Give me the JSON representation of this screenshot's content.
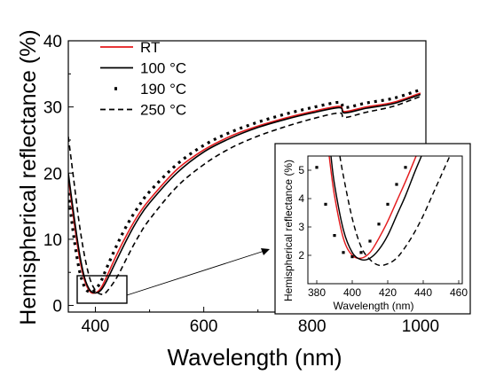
{
  "colors": {
    "rt": "#e41a1c",
    "black": "#000000"
  },
  "chart_data": [
    {
      "type": "line",
      "xlabel": "Wavelength (nm)",
      "ylabel": "Hemispherical reflectance (%)",
      "xlim": [
        350,
        1010
      ],
      "ylim": [
        -1,
        40
      ],
      "xticks": [
        400,
        600,
        800,
        1000
      ],
      "yticks": [
        0,
        10,
        20,
        30,
        40
      ],
      "grid": false,
      "legend_position": "top-left",
      "series": [
        {
          "name": "RT",
          "color": "#e41a1c",
          "style": "solid",
          "x": [
            350,
            360,
            370,
            380,
            390,
            400,
            410,
            420,
            440,
            460,
            480,
            500,
            550,
            600,
            650,
            700,
            750,
            800,
            850,
            860,
            900,
            950,
            1000
          ],
          "y": [
            19.5,
            13,
            7.5,
            3.8,
            2.1,
            1.9,
            2.6,
            4.2,
            7.8,
            11,
            13.8,
            16,
            20.5,
            23.5,
            25.6,
            27.1,
            28.3,
            29.3,
            30.1,
            29.3,
            30.0,
            30.7,
            32.1
          ]
        },
        {
          "name": "100 °C",
          "color": "#000000",
          "style": "solid",
          "x": [
            350,
            360,
            370,
            380,
            390,
            400,
            410,
            420,
            440,
            460,
            480,
            500,
            550,
            600,
            650,
            700,
            750,
            800,
            850,
            860,
            900,
            950,
            1000
          ],
          "y": [
            20,
            13.8,
            8.2,
            4.2,
            2.3,
            1.9,
            2.3,
            3.6,
            7,
            10.3,
            13.2,
            15.5,
            20,
            23.2,
            25.3,
            26.9,
            28.1,
            29.1,
            29.9,
            29.1,
            29.8,
            30.5,
            31.9
          ]
        },
        {
          "name": "190 °C",
          "color": "#000000",
          "style": "dotted",
          "x": [
            350,
            360,
            370,
            380,
            390,
            400,
            410,
            420,
            440,
            460,
            480,
            500,
            550,
            600,
            650,
            700,
            750,
            800,
            850,
            860,
            900,
            950,
            1000
          ],
          "y": [
            17,
            10.5,
            5.5,
            2.8,
            2.0,
            2.4,
            3.6,
            5.5,
            9.2,
            12.4,
            15,
            17.2,
            21.3,
            24.2,
            26.2,
            27.7,
            28.9,
            29.9,
            30.7,
            29.9,
            30.6,
            31.3,
            32.6
          ]
        },
        {
          "name": "250 °C",
          "color": "#000000",
          "style": "dashed",
          "x": [
            350,
            360,
            370,
            380,
            390,
            400,
            410,
            420,
            440,
            460,
            480,
            500,
            550,
            600,
            650,
            700,
            750,
            800,
            850,
            860,
            900,
            950,
            1000
          ],
          "y": [
            25.5,
            19,
            12.5,
            7.5,
            4.0,
            2.3,
            1.7,
            2.0,
            4.3,
            7.5,
            10.5,
            13,
            17.9,
            21.3,
            23.8,
            25.6,
            27.0,
            28.2,
            29.1,
            28.4,
            29.2,
            30.1,
            31.6
          ]
        }
      ]
    },
    {
      "type": "line",
      "xlabel": "Wavelength (nm)",
      "ylabel": "Hemispherical reflectance (%)",
      "xlim": [
        375,
        462
      ],
      "ylim": [
        1,
        5.5
      ],
      "xticks": [
        380,
        400,
        420,
        440,
        460
      ],
      "yticks": [
        2,
        3,
        4,
        5
      ],
      "series": [
        {
          "name": "RT",
          "color": "#e41a1c",
          "style": "solid",
          "x": [
            387,
            390,
            395,
            400,
            405,
            410,
            415,
            420,
            425,
            430,
            436
          ],
          "y": [
            5.5,
            4.1,
            2.6,
            2.0,
            1.9,
            2.1,
            2.6,
            3.2,
            3.9,
            4.6,
            5.5
          ]
        },
        {
          "name": "100 °C",
          "color": "#000000",
          "style": "solid",
          "x": [
            388,
            390,
            395,
            400,
            405,
            410,
            415,
            420,
            425,
            430,
            435,
            439
          ],
          "y": [
            5.5,
            4.5,
            2.9,
            2.1,
            1.85,
            1.9,
            2.2,
            2.7,
            3.4,
            4.1,
            4.9,
            5.5
          ]
        },
        {
          "name": "190 °C",
          "color": "#000000",
          "style": "dotted",
          "x": [
            380,
            385,
            390,
            395,
            400,
            405,
            410,
            415,
            420,
            425,
            430
          ],
          "y": [
            5.1,
            3.8,
            2.7,
            2.1,
            1.95,
            2.1,
            2.5,
            3.1,
            3.8,
            4.5,
            5.1
          ]
        },
        {
          "name": "250 °C",
          "color": "#000000",
          "style": "dashed",
          "x": [
            393,
            395,
            400,
            405,
            410,
            415,
            420,
            425,
            430,
            435,
            440,
            445,
            450,
            455
          ],
          "y": [
            5.5,
            4.8,
            3.3,
            2.3,
            1.85,
            1.65,
            1.7,
            1.9,
            2.3,
            2.8,
            3.4,
            4.1,
            4.8,
            5.5
          ]
        }
      ]
    }
  ]
}
